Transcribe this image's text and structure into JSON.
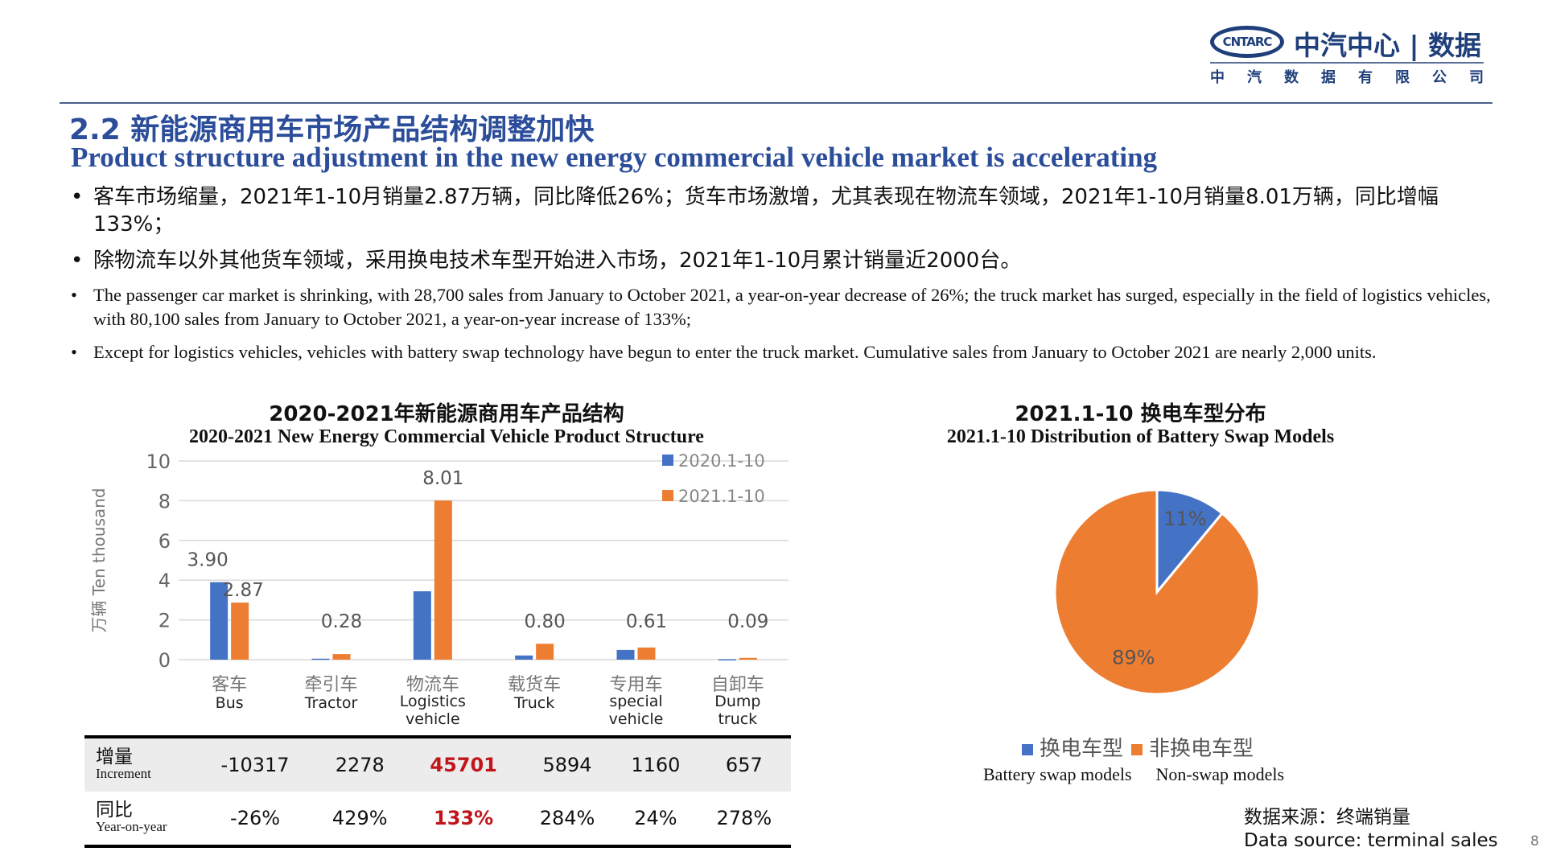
{
  "logo": {
    "mark": "CNTARC",
    "name": "中汽中心 | 数据",
    "sub": [
      "中",
      "汽",
      "数",
      "据",
      "有",
      "限",
      "公",
      "司"
    ]
  },
  "title_cn": "2.2 新能源商用车市场产品结构调整加快",
  "title_en": "Product structure adjustment in the new energy commercial vehicle market is accelerating",
  "bullets_cn": [
    "客车市场缩量，2021年1-10月销量2.87万辆，同比降低26%；货车市场激增，尤其表现在物流车领域，2021年1-10月销量8.01万辆，同比增幅133%；",
    "除物流车以外其他货车领域，采用换电技术车型开始进入市场，2021年1-10月累计销量近2000台。"
  ],
  "bullets_en": [
    "The passenger car market is shrinking, with 28,700 sales from January to October 2021, a year-on-year decrease of 26%; the truck market has surged, especially in the field of logistics vehicles, with 80,100 sales from January to October 2021, a year-on-year increase of 133%;",
    "Except for logistics vehicles, vehicles with battery swap technology have begun to enter the truck market. Cumulative sales from January to October 2021 are nearly 2,000 units."
  ],
  "chart_data": [
    {
      "type": "bar",
      "title": "2020-2021年新能源商用车产品结构",
      "subtitle": "2020-2021 New Energy Commercial Vehicle Product Structure",
      "ylabel": "万辆 Ten thousand",
      "ylim": [
        0,
        10
      ],
      "yticks": [
        "0",
        "2",
        "4",
        "6",
        "8",
        "10"
      ],
      "grid": true,
      "legend": "top-right",
      "categories": [
        [
          "客车",
          "Bus"
        ],
        [
          "牵引车",
          "Tractor"
        ],
        [
          "物流车",
          "Logistics vehicle"
        ],
        [
          "载货车",
          "Truck"
        ],
        [
          "专用车",
          "special vehicle"
        ],
        [
          "自卸车",
          "Dump truck"
        ]
      ],
      "series": [
        {
          "name": "2020.1-10",
          "color": "#4472c4",
          "values": [
            3.9,
            0.05,
            3.44,
            0.21,
            0.49,
            0.02
          ]
        },
        {
          "name": "2021.1-10",
          "color": "#ed7d31",
          "values": [
            2.87,
            0.28,
            8.01,
            0.8,
            0.61,
            0.09
          ]
        }
      ],
      "data_labels": {
        "series0": [
          "3.90"
        ],
        "series1": [
          "2.87",
          "0.28",
          "8.01",
          "0.80",
          "0.61",
          "0.09"
        ]
      }
    },
    {
      "type": "pie",
      "title": "2021.1-10 换电车型分布",
      "subtitle": "2021.1-10 Distribution of Battery Swap Models",
      "slices": [
        {
          "name": "换电车型",
          "name_en": "Battery swap models",
          "value": 11,
          "label": "11%",
          "color": "#4472c4"
        },
        {
          "name": "非换电车型",
          "name_en": "Non-swap models",
          "value": 89,
          "label": "89%",
          "color": "#ed7d31"
        }
      ],
      "legend": "bottom"
    }
  ],
  "table": {
    "rows": [
      {
        "label_cn": "增量",
        "label_en": "Increment",
        "values": [
          "-10317",
          "2278",
          "45701",
          "5894",
          "1160",
          "657"
        ]
      },
      {
        "label_cn": "同比",
        "label_en": "Year-on-year",
        "values": [
          "-26%",
          "429%",
          "133%",
          "284%",
          "24%",
          "278%"
        ]
      }
    ]
  },
  "source_cn": "数据来源：终端销量",
  "source_en": "Data source: terminal sales",
  "page": "8"
}
